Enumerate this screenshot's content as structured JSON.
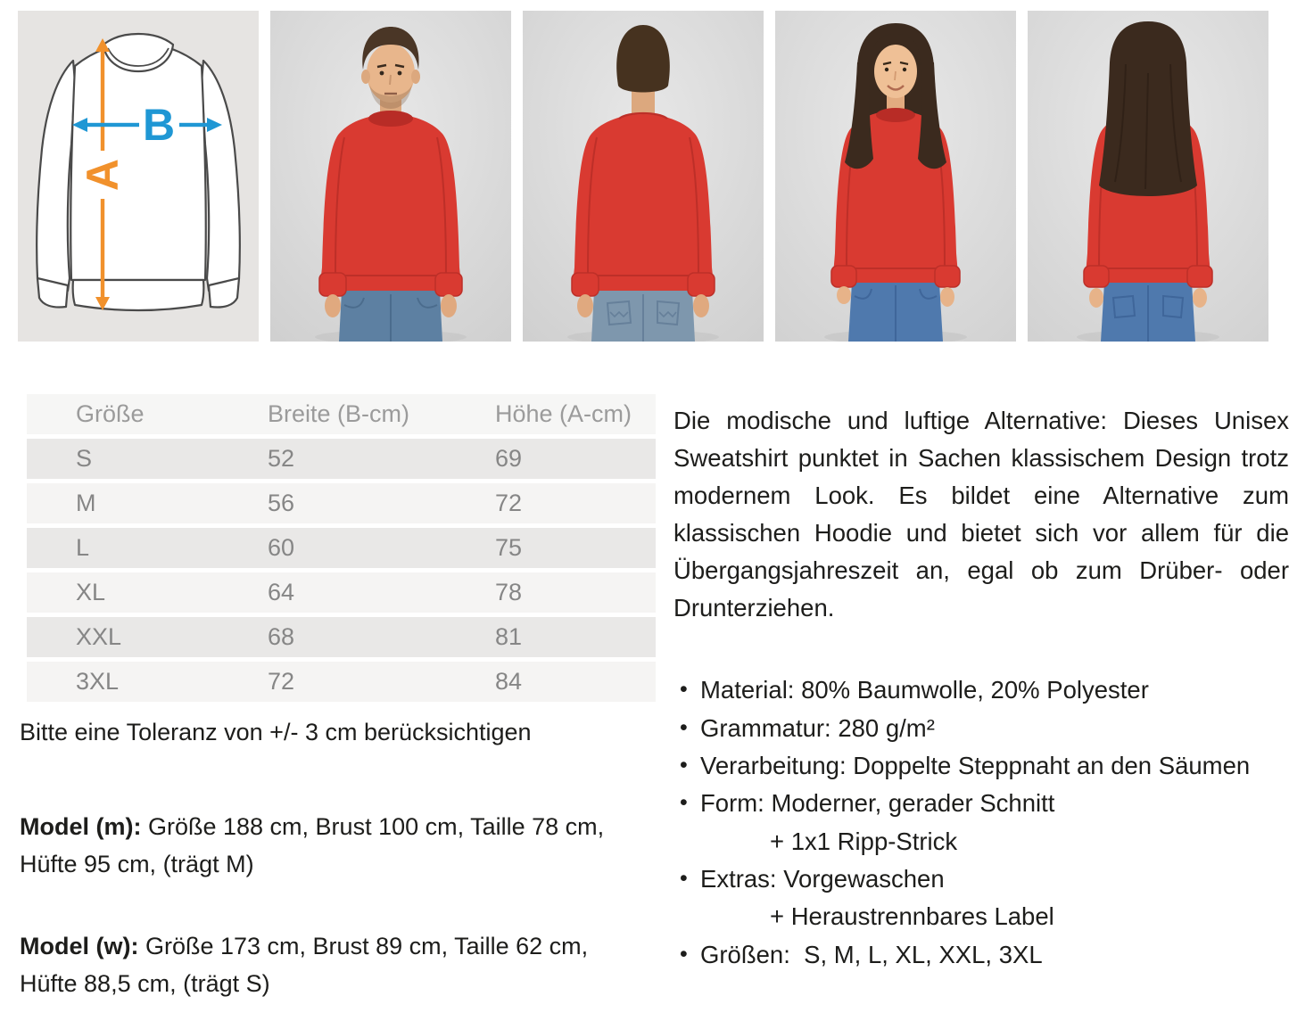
{
  "size_diagram": {
    "label_a": "A",
    "label_b": "B",
    "arrow_a_color": "#f1912c",
    "arrow_b_color": "#1f97d4"
  },
  "photos": [
    "size-diagram",
    "man-front",
    "man-back",
    "woman-front",
    "woman-back"
  ],
  "colors": {
    "sweatshirt_red": "#d93a31",
    "collar_red_dark": "#b82c26",
    "jeans_blue": "#5d80a2",
    "jeans_blue_light": "#7e97ad",
    "jeans_blue_woman": "#4f79ad",
    "photo_background": "#dcdcdc",
    "diagram_background": "#e6e4e2",
    "table_row_dark": "#e9e8e7",
    "table_row_light": "#f5f4f3"
  },
  "size_table": {
    "headers": [
      "Größe",
      "Breite (B-cm)",
      "Höhe (A-cm)"
    ],
    "rows": [
      [
        "S",
        "52",
        "69"
      ],
      [
        "M",
        "56",
        "72"
      ],
      [
        "L",
        "60",
        "75"
      ],
      [
        "XL",
        "64",
        "78"
      ],
      [
        "XXL",
        "68",
        "81"
      ],
      [
        "3XL",
        "72",
        "84"
      ]
    ]
  },
  "tolerance_note": "Bitte eine Toleranz von +/- 3 cm berücksichtigen",
  "models": {
    "m": {
      "label": "Model (m):",
      "text": " Größe 188 cm, Brust 100 cm, Taille 78 cm, Hüfte 95 cm, (trägt M)"
    },
    "w": {
      "label": "Model (w):",
      "text": " Größe 173 cm, Brust 89 cm, Taille 62 cm, Hüfte 88,5 cm, (trägt S)"
    }
  },
  "description": "Die modische und luftige Alternative: Dieses Unisex Sweatshirt punktet in Sachen klassischem Design trotz modernem Look. Es bildet eine Alternative zum klassischen Hoodie und bietet sich vor allem für die Übergangsjahreszeit an, egal ob zum Drüber- oder Drunterziehen.",
  "features": [
    {
      "text": "Material: 80% Baumwolle, 20% Polyester"
    },
    {
      "text": "Grammatur: 280 g/m²"
    },
    {
      "text": "Verarbeitung: Doppelte Steppnaht an den Säumen"
    },
    {
      "text": "Form: Moderner, gerader Schnitt",
      "sub": [
        "+ 1x1 Ripp-Strick"
      ]
    },
    {
      "text": "Extras: Vorgewaschen",
      "sub": [
        "+ Heraustrennbares Label"
      ]
    },
    {
      "text": "Größen:  S, M, L, XL, XXL, 3XL"
    }
  ]
}
